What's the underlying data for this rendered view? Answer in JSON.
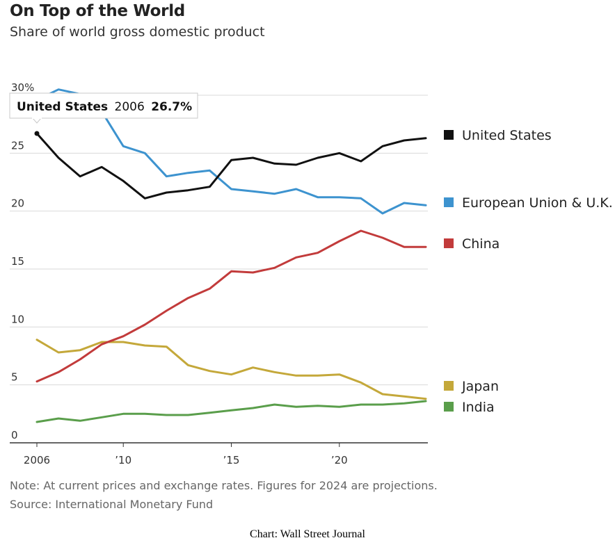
{
  "title": "On Top of the World",
  "subtitle": "Share of world gross domestic product",
  "note": "Note: At current prices and exchange rates. Figures for 2024 are projections.",
  "source": "Source: International Monetary Fund",
  "credit": "Chart: Wall Street Journal",
  "tooltip": {
    "series": "United States",
    "year": "2006",
    "value": "26.7%"
  },
  "chart_data": {
    "type": "line",
    "x": [
      2006,
      2007,
      2008,
      2009,
      2010,
      2011,
      2012,
      2013,
      2014,
      2015,
      2016,
      2017,
      2018,
      2019,
      2020,
      2021,
      2022,
      2023,
      2024
    ],
    "ylim": [
      0,
      30
    ],
    "xlim": [
      2006,
      2024
    ],
    "y_ticks": [
      {
        "value": 30,
        "label": "30%"
      },
      {
        "value": 25,
        "label": "25"
      },
      {
        "value": 20,
        "label": "20"
      },
      {
        "value": 15,
        "label": "15"
      },
      {
        "value": 10,
        "label": "10"
      },
      {
        "value": 5,
        "label": "5"
      },
      {
        "value": 0,
        "label": "0"
      }
    ],
    "x_ticks": [
      {
        "value": 2006,
        "label": "2006"
      },
      {
        "value": 2010,
        "label": "’10"
      },
      {
        "value": 2015,
        "label": "’15"
      },
      {
        "value": 2020,
        "label": "’20"
      }
    ],
    "grid": true,
    "legend_position": "right",
    "series": [
      {
        "name": "United States",
        "color": "#111111",
        "values": [
          26.7,
          24.6,
          23.0,
          23.8,
          22.6,
          21.1,
          21.6,
          21.8,
          22.1,
          24.4,
          24.6,
          24.1,
          24.0,
          24.6,
          25.0,
          24.3,
          25.6,
          26.1,
          26.3
        ]
      },
      {
        "name": "European Union & U.K.",
        "color": "#3d93cf",
        "values": [
          29.6,
          30.5,
          30.1,
          28.6,
          25.6,
          25.0,
          23.0,
          23.3,
          23.5,
          21.9,
          21.7,
          21.5,
          21.9,
          21.2,
          21.2,
          21.1,
          19.8,
          20.7,
          20.5
        ]
      },
      {
        "name": "China",
        "color": "#c23b3b",
        "values": [
          5.3,
          6.1,
          7.2,
          8.5,
          9.2,
          10.2,
          11.4,
          12.5,
          13.3,
          14.8,
          14.7,
          15.1,
          16.0,
          16.4,
          17.4,
          18.3,
          17.7,
          16.9,
          16.9
        ]
      },
      {
        "name": "Japan",
        "color": "#c4a83a",
        "values": [
          8.9,
          7.8,
          8.0,
          8.7,
          8.7,
          8.4,
          8.3,
          6.7,
          6.2,
          5.9,
          6.5,
          6.1,
          5.8,
          5.8,
          5.9,
          5.2,
          4.2,
          4.0,
          3.8
        ]
      },
      {
        "name": "India",
        "color": "#5a9e4b",
        "values": [
          1.8,
          2.1,
          1.9,
          2.2,
          2.5,
          2.5,
          2.4,
          2.4,
          2.6,
          2.8,
          3.0,
          3.3,
          3.1,
          3.2,
          3.1,
          3.3,
          3.3,
          3.4,
          3.6
        ]
      }
    ]
  }
}
